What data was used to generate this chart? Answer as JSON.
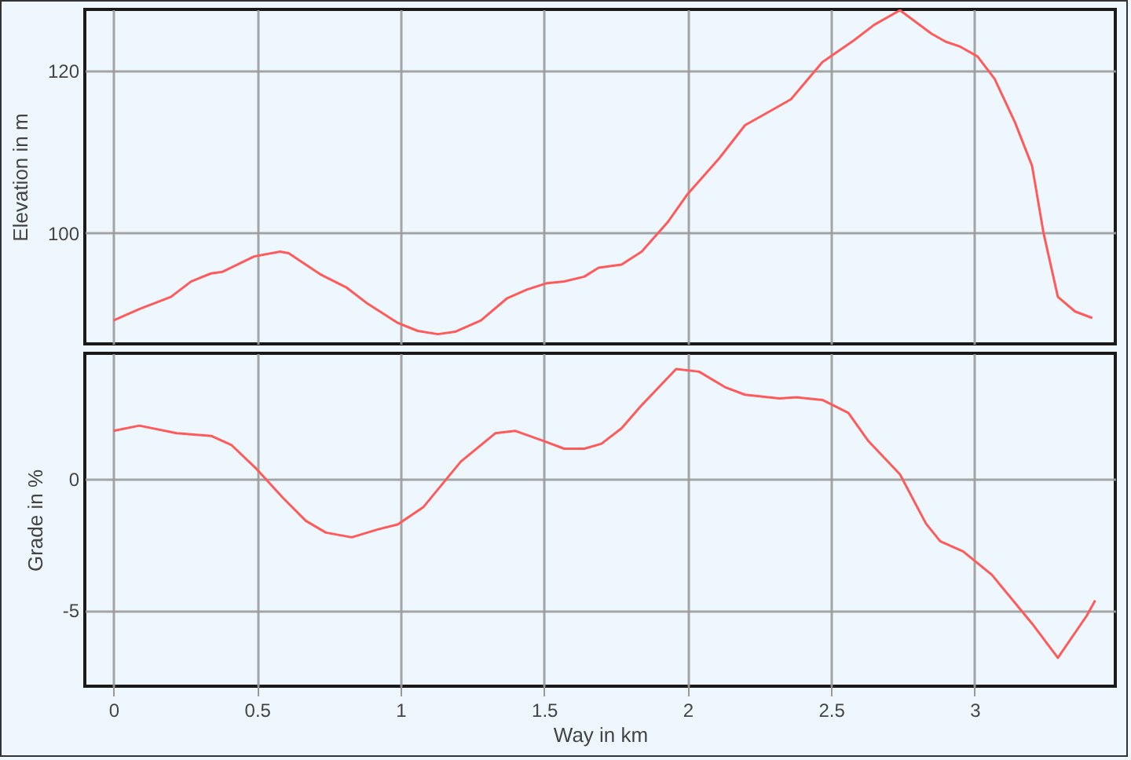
{
  "chart_data": [
    {
      "type": "line",
      "ylabel": "Elevation in m",
      "xlim": [
        -0.1,
        3.49
      ],
      "xticks": [
        0,
        0.5,
        1,
        1.5,
        2,
        2.5,
        3
      ],
      "ylim": [
        86.3,
        127.6
      ],
      "yticks": [
        100,
        120
      ],
      "grid": true,
      "tick_labels": "y",
      "x": [
        0,
        0.09,
        0.2,
        0.27,
        0.34,
        0.38,
        0.49,
        0.58,
        0.61,
        0.72,
        0.81,
        0.88,
        0.99,
        1.06,
        1.13,
        1.19,
        1.28,
        1.37,
        1.44,
        1.51,
        1.57,
        1.64,
        1.69,
        1.77,
        1.84,
        1.93,
        2.0,
        2.11,
        2.2,
        2.29,
        2.36,
        2.47,
        2.58,
        2.65,
        2.74,
        2.85,
        2.9,
        2.95,
        3.01,
        3.07,
        3.14,
        3.2,
        3.24,
        3.29,
        3.35,
        3.41
      ],
      "series": [
        {
          "color": "#ff5a5a",
          "values": [
            89.2,
            90.6,
            92.1,
            94.0,
            95.0,
            95.2,
            97.1,
            97.7,
            97.5,
            94.9,
            93.3,
            91.4,
            88.9,
            87.9,
            87.5,
            87.8,
            89.2,
            91.9,
            93.0,
            93.8,
            94.0,
            94.6,
            95.7,
            96.1,
            97.7,
            101.3,
            104.8,
            109.2,
            113.3,
            115.1,
            116.5,
            121.1,
            123.8,
            125.7,
            127.5,
            124.6,
            123.6,
            123.0,
            121.8,
            119.0,
            113.7,
            108.3,
            100.0,
            92.1,
            90.3,
            89.5
          ]
        }
      ]
    },
    {
      "type": "line",
      "xlabel": "Way in km",
      "ylabel": "Grade in %",
      "xlim": [
        -0.1,
        3.49
      ],
      "xticks": [
        0,
        0.5,
        1,
        1.5,
        2,
        2.5,
        3
      ],
      "ylim": [
        -7.9,
        4.8
      ],
      "yticks": [
        -5,
        0
      ],
      "grid": true,
      "x": [
        0,
        0.09,
        0.22,
        0.34,
        0.41,
        0.5,
        0.59,
        0.67,
        0.74,
        0.83,
        0.92,
        0.99,
        1.08,
        1.21,
        1.33,
        1.4,
        1.5,
        1.57,
        1.64,
        1.7,
        1.77,
        1.84,
        1.96,
        2.04,
        2.13,
        2.2,
        2.32,
        2.38,
        2.47,
        2.56,
        2.63,
        2.74,
        2.83,
        2.88,
        2.96,
        3.06,
        3.2,
        3.29,
        3.39,
        3.42
      ],
      "series": [
        {
          "color": "#ff5a5a",
          "values": [
            1.84,
            2.04,
            1.75,
            1.65,
            1.31,
            0.37,
            -0.71,
            -1.59,
            -2.04,
            -2.22,
            -1.92,
            -1.73,
            -1.06,
            0.67,
            1.75,
            1.84,
            1.45,
            1.16,
            1.16,
            1.35,
            1.94,
            2.82,
            4.2,
            4.1,
            3.51,
            3.22,
            3.08,
            3.12,
            3.02,
            2.53,
            1.45,
            0.18,
            -1.69,
            -2.37,
            -2.76,
            -3.65,
            -5.51,
            -6.82,
            -5.22,
            -4.63
          ]
        }
      ]
    }
  ]
}
